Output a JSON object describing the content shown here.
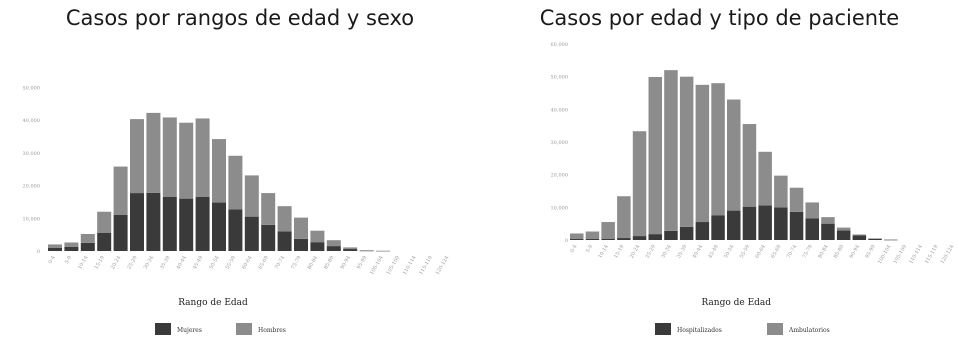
{
  "chart_data": [
    {
      "type": "bar",
      "stacked": true,
      "title": "Casos por rangos de edad y sexo",
      "xlabel": "Rango de Edad",
      "ylabel": "",
      "ylim": [
        0,
        55000
      ],
      "yticks": [
        0,
        10000,
        20000,
        30000,
        40000,
        50000
      ],
      "ytick_labels": [
        "0",
        "10,000",
        "20,000",
        "30,000",
        "40,000",
        "50,000"
      ],
      "categories": [
        "0-4",
        "5-9",
        "10-14",
        "15-19",
        "20-24",
        "25-29",
        "30-34",
        "35-39",
        "40-44",
        "45-49",
        "50-54",
        "55-59",
        "60-64",
        "65-69",
        "70-74",
        "75-79",
        "80-84",
        "85-89",
        "90-94",
        "95-99",
        "100-104",
        "105-109",
        "110-114",
        "115-119",
        "120-124"
      ],
      "series": [
        {
          "name": "Mujeres",
          "color": "#3a3a3a",
          "values": [
            1000,
            1300,
            2500,
            5500,
            11000,
            17700,
            17800,
            16500,
            16000,
            16500,
            14800,
            12700,
            10500,
            8000,
            6000,
            3700,
            2700,
            1500,
            600,
            120,
            30,
            0,
            0,
            0,
            0
          ]
        },
        {
          "name": "Hombres",
          "color": "#8c8c8c",
          "values": [
            1000,
            1300,
            2700,
            6500,
            14800,
            22600,
            24400,
            24300,
            23200,
            24000,
            19400,
            16400,
            12600,
            9700,
            7700,
            6500,
            3500,
            1800,
            500,
            110,
            20,
            0,
            0,
            0,
            0
          ]
        }
      ],
      "legend_position": "bottom"
    },
    {
      "type": "bar",
      "stacked": true,
      "title": "Casos por edad y tipo de paciente",
      "xlabel": "Rango de Edad",
      "ylabel": "",
      "ylim": [
        0,
        60000
      ],
      "yticks": [
        0,
        10000,
        20000,
        30000,
        40000,
        50000,
        60000
      ],
      "ytick_labels": [
        "0",
        "10,000",
        "20,000",
        "30,000",
        "40,000",
        "50,000",
        "60,000"
      ],
      "categories": [
        "0-4",
        "5-9",
        "10-14",
        "15-19",
        "20-24",
        "25-29",
        "30-34",
        "35-39",
        "40-44",
        "45-49",
        "50-54",
        "55-59",
        "60-64",
        "65-69",
        "70-74",
        "75-79",
        "80-84",
        "85-89",
        "90-94",
        "95-99",
        "100-104",
        "105-109",
        "110-114",
        "115-119",
        "120-124"
      ],
      "series": [
        {
          "name": "Hospitalizados",
          "color": "#3a3a3a",
          "values": [
            300,
            300,
            400,
            600,
            1200,
            1800,
            2800,
            4000,
            5500,
            7500,
            9000,
            10200,
            10600,
            10000,
            8600,
            6600,
            5000,
            2900,
            1400,
            400,
            100,
            0,
            0,
            0,
            0
          ]
        },
        {
          "name": "Ambulatorios",
          "color": "#8c8c8c",
          "values": [
            1700,
            2300,
            5100,
            12800,
            32100,
            48100,
            49200,
            46000,
            42000,
            40500,
            34000,
            25300,
            16400,
            9700,
            7400,
            4900,
            2000,
            900,
            300,
            100,
            0,
            0,
            0,
            0,
            0
          ]
        }
      ],
      "legend_position": "bottom"
    }
  ]
}
